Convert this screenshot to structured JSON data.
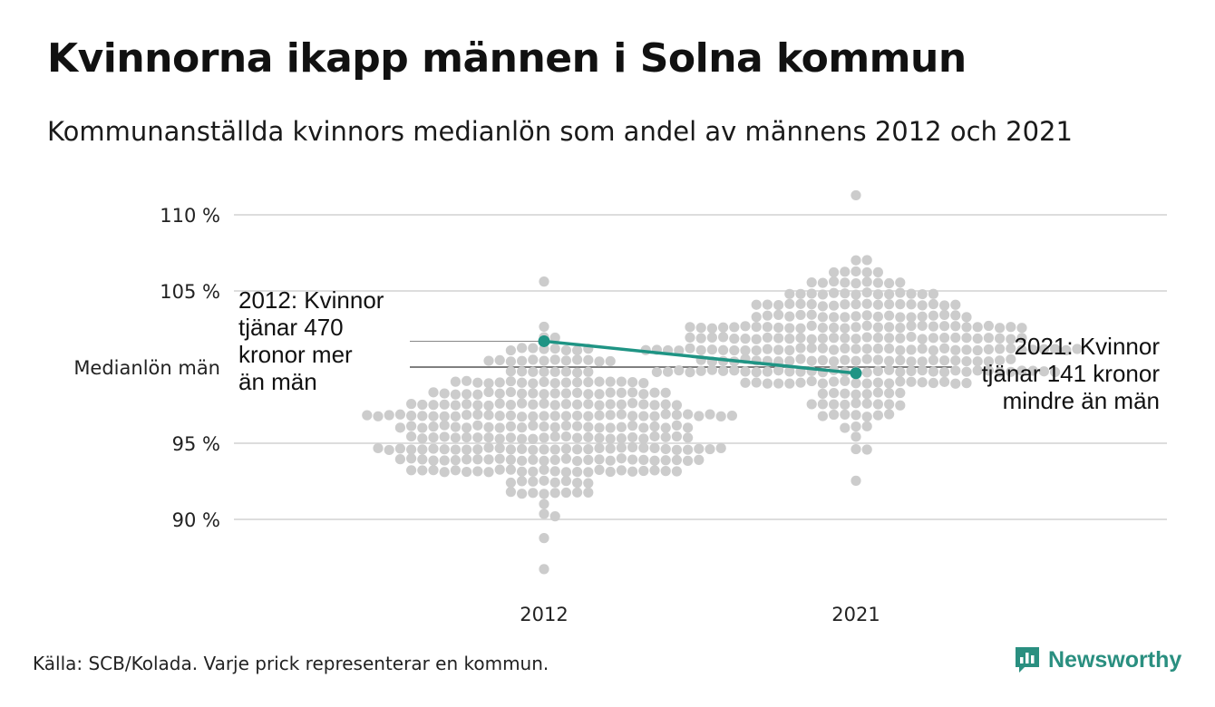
{
  "title": "Kvinnorna ikapp männen i Solna kommun",
  "subtitle": "Kommunanställda kvinnors medianlön som andel av männens 2012 och 2021",
  "source": "Källa: SCB/Kolada. Varje prick representerar en kommun.",
  "brand": {
    "name": "Newsworthy",
    "icon": "newsworthy-logo-icon"
  },
  "colors": {
    "dots": "#cccccc",
    "highlight": "#1f9484",
    "grid": "#dddddd",
    "reference": "#555555"
  },
  "chart_data": {
    "type": "scatter",
    "subtype": "beeswarm",
    "categories": [
      "2012",
      "2021"
    ],
    "ylim": [
      86,
      112
    ],
    "yticks": [
      {
        "value": 90,
        "label": "90 %"
      },
      {
        "value": 95,
        "label": "95 %"
      },
      {
        "value": 105,
        "label": "105 %"
      },
      {
        "value": 110,
        "label": "110 %"
      }
    ],
    "reference_line": {
      "value": 100,
      "label": "Medianlön män"
    },
    "distribution": {
      "2012": {
        "median": 96.0,
        "spread": 2.6,
        "min": 86.5,
        "max": 105.3,
        "count": 290
      },
      "2021": {
        "median": 101.0,
        "spread": 2.4,
        "min": 92.5,
        "max": 111.4,
        "count": 290
      }
    },
    "highlight": {
      "name": "Solna",
      "points": [
        {
          "x": "2012",
          "y": 101.7
        },
        {
          "x": "2021",
          "y": 99.6
        }
      ]
    },
    "annotations": [
      {
        "x": "2012",
        "lines": [
          "2012: Kvinnor",
          "tjänar 470",
          "kronor mer",
          "än män"
        ]
      },
      {
        "x": "2021",
        "lines": [
          "2021: Kvinnor",
          "tjänar 141 kronor",
          "mindre än män"
        ]
      }
    ]
  }
}
